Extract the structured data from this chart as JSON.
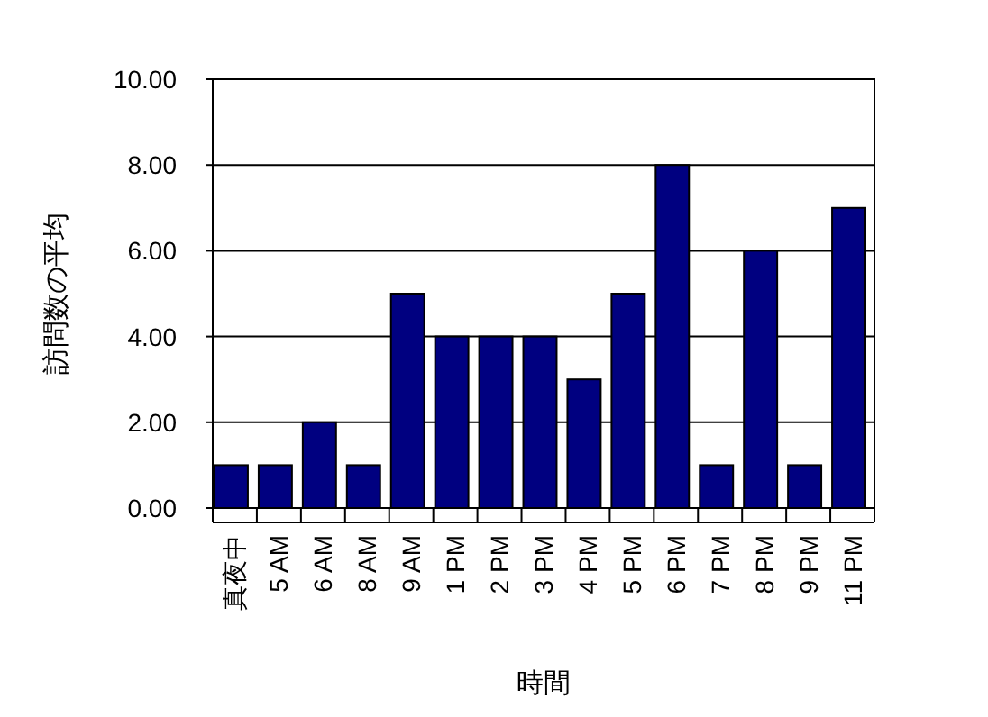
{
  "chart_data": {
    "type": "bar",
    "xlabel": "時間",
    "ylabel": "訪問数の平均",
    "categories": [
      "真夜中",
      "5 AM",
      "6 AM",
      "8 AM",
      "9 AM",
      "1 PM",
      "2 PM",
      "3 PM",
      "4 PM",
      "5 PM",
      "6 PM",
      "7 PM",
      "8 PM",
      "9 PM",
      "11 PM"
    ],
    "values": [
      1,
      1,
      2,
      1,
      5,
      4,
      4,
      4,
      3,
      5,
      8,
      1,
      6,
      1,
      7
    ],
    "color": "#000080",
    "ylim": [
      0,
      10
    ],
    "yticks": [
      {
        "value": 0,
        "label": "0.00"
      },
      {
        "value": 2,
        "label": "2.00"
      },
      {
        "value": 4,
        "label": "4.00"
      },
      {
        "value": 6,
        "label": "6.00"
      },
      {
        "value": 8,
        "label": "8.00"
      },
      {
        "value": 10,
        "label": "10.00"
      }
    ],
    "grid": "y"
  }
}
